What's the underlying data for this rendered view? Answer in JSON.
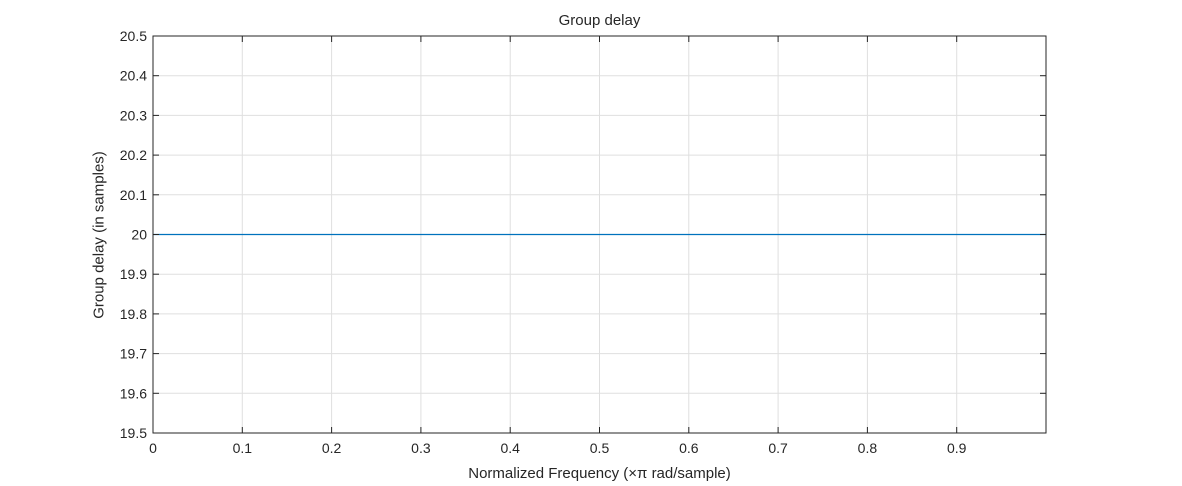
{
  "chart_data": {
    "type": "line",
    "title": "Group delay",
    "xlabel": "Normalized Frequency (×π rad/sample)",
    "ylabel": "Group delay (in samples)",
    "xlim": [
      0,
      1
    ],
    "ylim": [
      19.5,
      20.5
    ],
    "x_ticks": [
      0,
      0.1,
      0.2,
      0.3,
      0.4,
      0.5,
      0.6,
      0.7,
      0.8,
      0.9
    ],
    "x_tick_labels": [
      "0",
      "0.1",
      "0.2",
      "0.3",
      "0.4",
      "0.5",
      "0.6",
      "0.7",
      "0.8",
      "0.9"
    ],
    "y_ticks": [
      19.5,
      19.6,
      19.7,
      19.8,
      19.9,
      20,
      20.1,
      20.2,
      20.3,
      20.4,
      20.5
    ],
    "y_tick_labels": [
      "19.5",
      "19.6",
      "19.7",
      "19.8",
      "19.9",
      "20",
      "20.1",
      "20.2",
      "20.3",
      "20.4",
      "20.5"
    ],
    "grid": true,
    "series": [
      {
        "x": [
          0,
          1
        ],
        "y": [
          20,
          20
        ],
        "color": "#0072bd"
      }
    ]
  }
}
